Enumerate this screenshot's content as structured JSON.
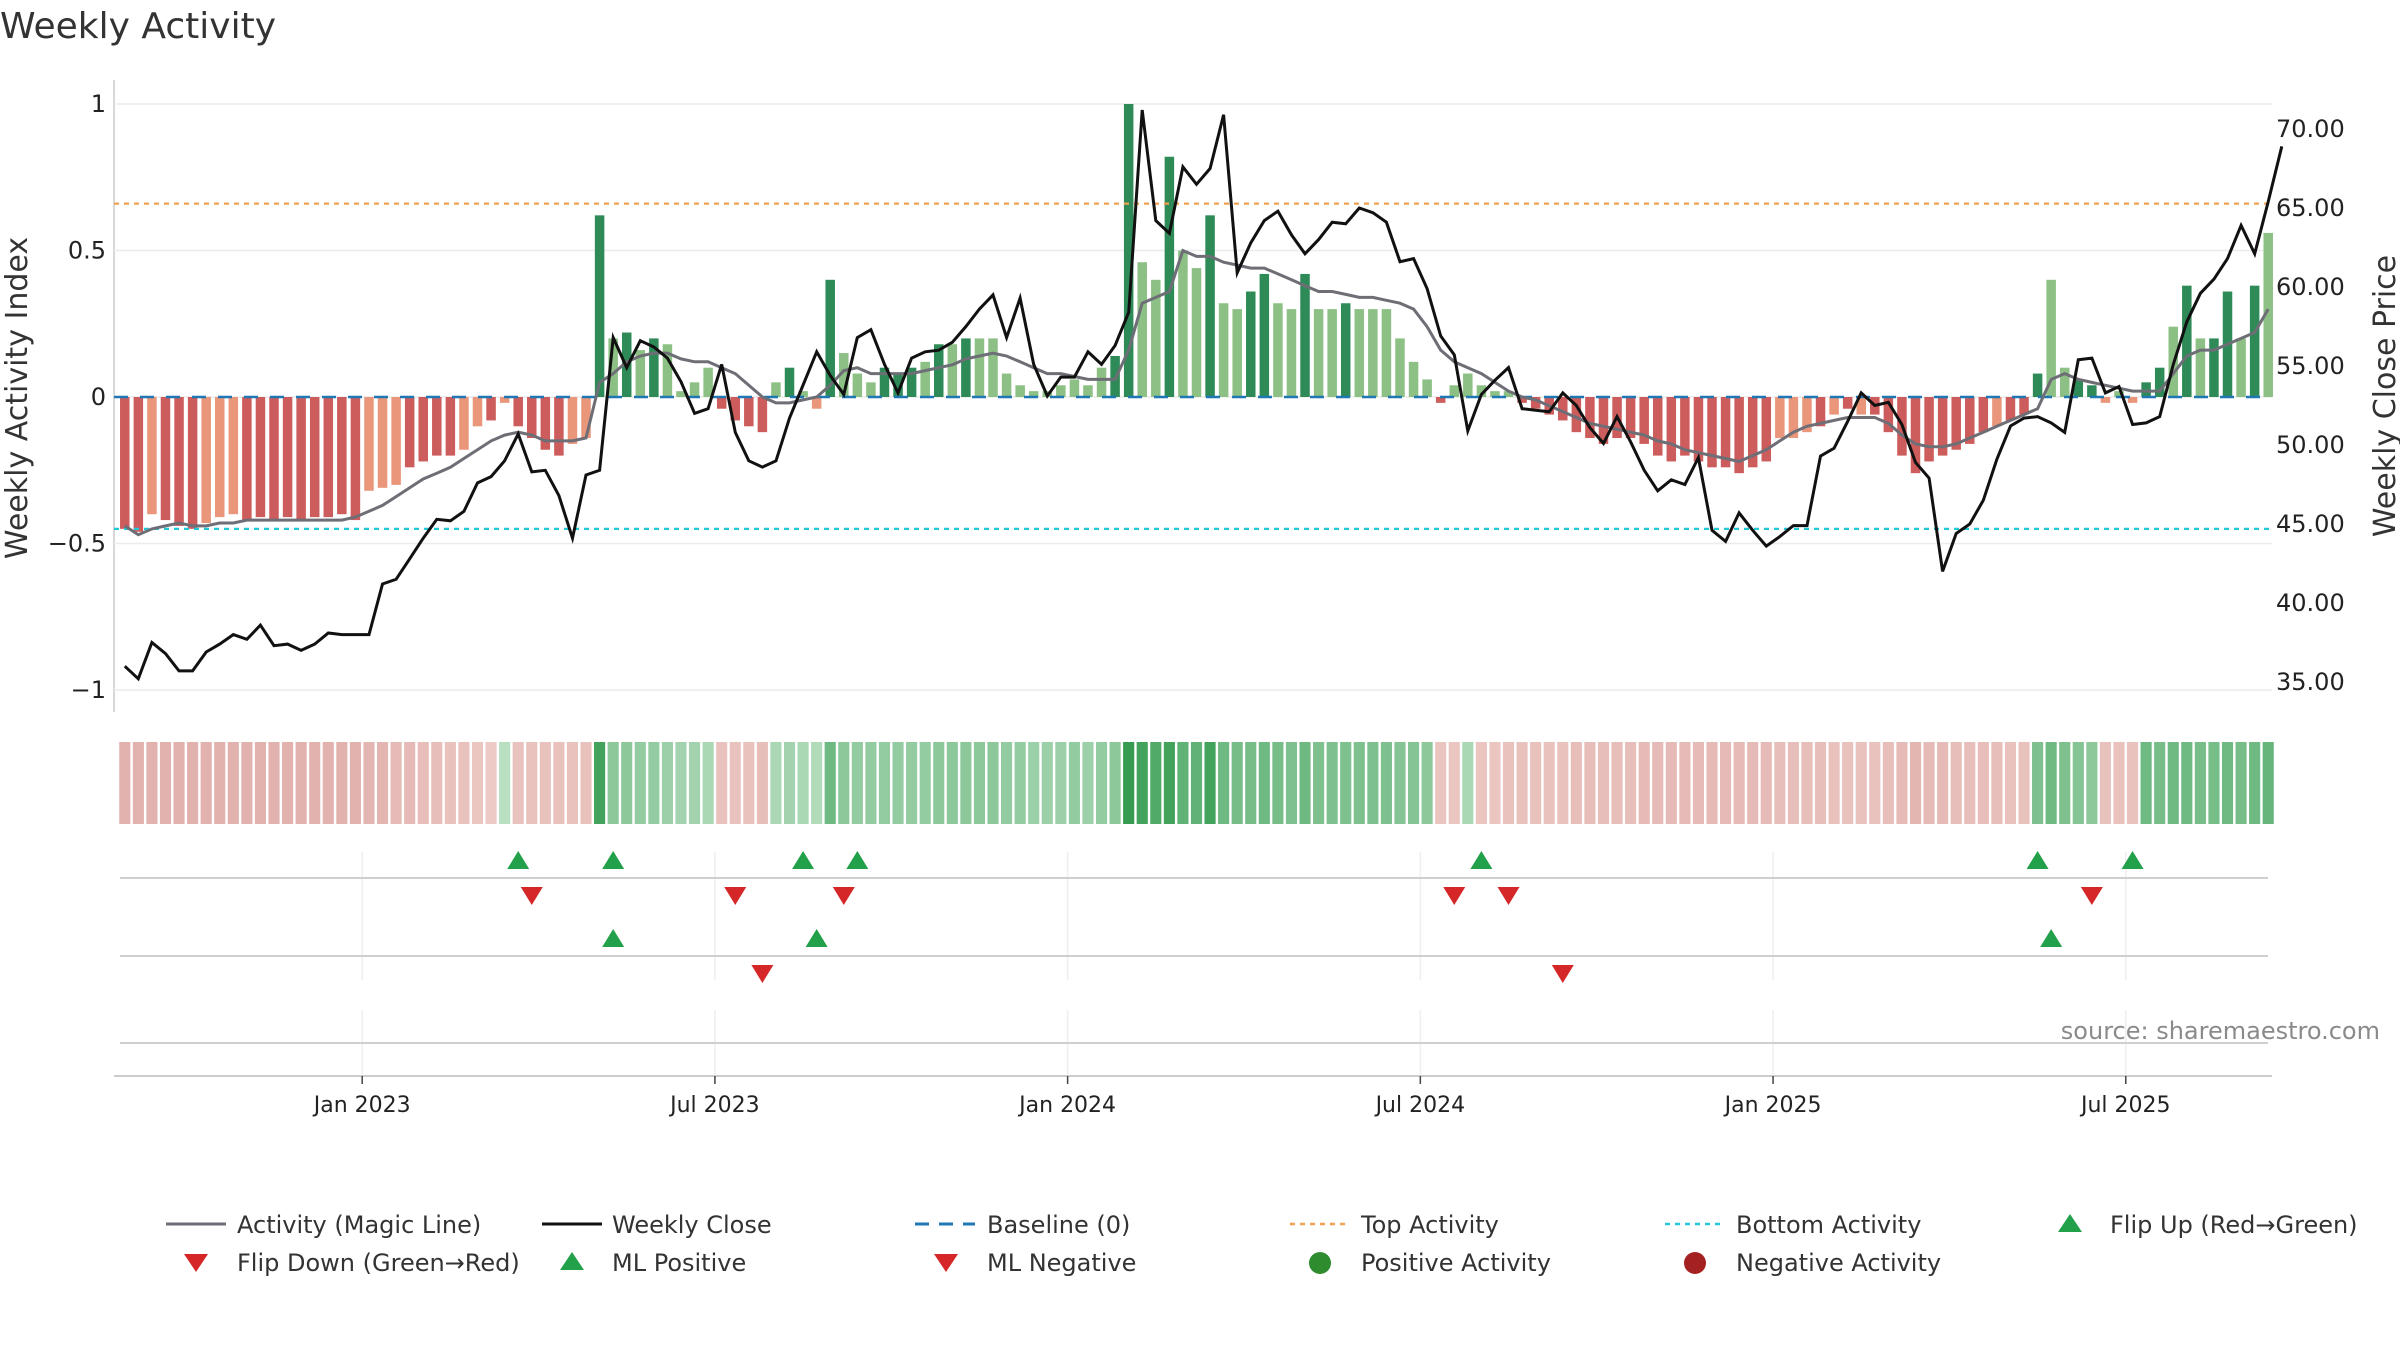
{
  "title": "Weekly Activity",
  "source": "source: sharemaestro.com",
  "colors": {
    "strong_pos": "#2e8b57",
    "weak_pos": "#8cc084",
    "strong_neg": "#cd5c5c",
    "weak_neg": "#e9967a",
    "magic_line": "#6e6e76",
    "close_line": "#111111",
    "baseline": "#1f77b4",
    "top_line": "#f0a050",
    "bottom_line": "#22c8d8",
    "marker_up": "#22a04a",
    "marker_down": "#d62728",
    "legend_pos_dot": "#2e8b2e",
    "legend_neg_dot": "#a52020"
  },
  "chart_data": {
    "type": "bar",
    "title": "Weekly Activity",
    "ylabel_left": "Weekly Activity Index",
    "ylabel_right": "Weekly Close Price",
    "ylim_left": [
      -1.1,
      1.1
    ],
    "ylim_right": [
      33,
      74
    ],
    "left_ticks": [
      "1",
      "0.5",
      "0",
      "−0.5",
      "−1"
    ],
    "left_tick_values": [
      1,
      0.5,
      0,
      -0.5,
      -1
    ],
    "right_ticks": [
      "70.00",
      "65.00",
      "60.00",
      "55.00",
      "50.00",
      "45.00",
      "40.00",
      "35.00"
    ],
    "right_tick_values": [
      70,
      65,
      60,
      55,
      50,
      45,
      40,
      35
    ],
    "date_ticks": [
      "Jan 2023",
      "Jul 2023",
      "Jan 2024",
      "Jul 2024",
      "Jan 2025",
      "Jul 2025"
    ],
    "date_tick_weeks": [
      17.5,
      43.5,
      69.5,
      95.5,
      121.5,
      147.5
    ],
    "top_activity": 0.66,
    "bottom_activity": -0.45,
    "baseline": 0,
    "activity": [
      -0.45,
      -0.46,
      -0.4,
      -0.42,
      -0.44,
      -0.45,
      -0.43,
      -0.41,
      -0.4,
      -0.42,
      -0.41,
      -0.42,
      -0.41,
      -0.42,
      -0.41,
      -0.41,
      -0.4,
      -0.42,
      -0.32,
      -0.31,
      -0.3,
      -0.24,
      -0.22,
      -0.2,
      -0.2,
      -0.18,
      -0.1,
      -0.08,
      -0.02,
      -0.1,
      -0.14,
      -0.18,
      -0.2,
      -0.16,
      -0.14,
      0.62,
      0.2,
      0.22,
      0.16,
      0.2,
      0.18,
      0.02,
      0.05,
      0.1,
      -0.04,
      -0.08,
      -0.1,
      -0.12,
      0.05,
      0.1,
      0.02,
      -0.04,
      0.4,
      0.15,
      0.08,
      0.05,
      0.1,
      0.08,
      0.1,
      0.12,
      0.18,
      0.18,
      0.2,
      0.2,
      0.2,
      0.08,
      0.04,
      0.02,
      0.02,
      0.04,
      0.06,
      0.04,
      0.1,
      0.14,
      1.0,
      0.46,
      0.4,
      0.82,
      0.5,
      0.44,
      0.62,
      0.32,
      0.3,
      0.36,
      0.42,
      0.32,
      0.3,
      0.42,
      0.3,
      0.3,
      0.32,
      0.3,
      0.3,
      0.3,
      0.2,
      0.12,
      0.06,
      -0.02,
      0.04,
      0.08,
      0.04,
      0.02,
      0.02,
      -0.02,
      -0.04,
      -0.06,
      -0.08,
      -0.12,
      -0.14,
      -0.16,
      -0.14,
      -0.14,
      -0.16,
      -0.2,
      -0.22,
      -0.2,
      -0.22,
      -0.24,
      -0.24,
      -0.26,
      -0.24,
      -0.22,
      -0.14,
      -0.14,
      -0.12,
      -0.1,
      -0.06,
      -0.04,
      -0.06,
      -0.06,
      -0.12,
      -0.2,
      -0.26,
      -0.22,
      -0.2,
      -0.18,
      -0.16,
      -0.12,
      -0.1,
      -0.08,
      -0.06,
      0.08,
      0.4,
      0.1,
      0.06,
      0.04,
      -0.02,
      0.02,
      -0.02,
      0.05,
      0.1,
      0.24,
      0.38,
      0.2,
      0.2,
      0.36,
      0.2,
      0.38,
      0.56
    ],
    "activity_strength": [
      1,
      1,
      0,
      1,
      1,
      1,
      0,
      0,
      0,
      1,
      1,
      1,
      1,
      1,
      1,
      1,
      1,
      1,
      0,
      0,
      0,
      1,
      1,
      1,
      1,
      0,
      0,
      1,
      0,
      1,
      1,
      1,
      1,
      0,
      0,
      1,
      0,
      1,
      0,
      1,
      0,
      0,
      0,
      0,
      1,
      1,
      1,
      1,
      0,
      1,
      0,
      0,
      1,
      0,
      0,
      0,
      1,
      1,
      1,
      0,
      1,
      0,
      1,
      0,
      0,
      0,
      0,
      0,
      0,
      0,
      0,
      0,
      0,
      1,
      1,
      0,
      0,
      1,
      0,
      0,
      1,
      0,
      0,
      1,
      1,
      0,
      0,
      1,
      0,
      0,
      1,
      0,
      0,
      0,
      0,
      0,
      0,
      1,
      0,
      0,
      0,
      0,
      0,
      1,
      1,
      1,
      1,
      1,
      1,
      1,
      1,
      1,
      1,
      1,
      1,
      1,
      1,
      1,
      1,
      1,
      1,
      1,
      0,
      0,
      0,
      1,
      0,
      1,
      0,
      1,
      1,
      1,
      1,
      1,
      1,
      1,
      1,
      1,
      0,
      1,
      1,
      1,
      0,
      0,
      1,
      1,
      0,
      0,
      0,
      1,
      1,
      0,
      1,
      0,
      1,
      1,
      0,
      1,
      0,
      1,
      1,
      1
    ],
    "magic_line": [
      -0.44,
      -0.47,
      -0.45,
      -0.44,
      -0.43,
      -0.44,
      -0.44,
      -0.43,
      -0.43,
      -0.42,
      -0.42,
      -0.42,
      -0.42,
      -0.42,
      -0.42,
      -0.42,
      -0.42,
      -0.41,
      -0.39,
      -0.37,
      -0.34,
      -0.31,
      -0.28,
      -0.26,
      -0.24,
      -0.21,
      -0.18,
      -0.15,
      -0.13,
      -0.12,
      -0.13,
      -0.15,
      -0.15,
      -0.15,
      -0.14,
      0.05,
      0.08,
      0.12,
      0.14,
      0.15,
      0.15,
      0.13,
      0.12,
      0.12,
      0.1,
      0.08,
      0.04,
      0.0,
      -0.02,
      -0.02,
      -0.01,
      0.0,
      0.04,
      0.09,
      0.1,
      0.08,
      0.08,
      0.08,
      0.08,
      0.09,
      0.1,
      0.11,
      0.13,
      0.14,
      0.15,
      0.14,
      0.12,
      0.1,
      0.08,
      0.08,
      0.07,
      0.06,
      0.06,
      0.06,
      0.16,
      0.32,
      0.34,
      0.36,
      0.5,
      0.48,
      0.48,
      0.46,
      0.45,
      0.44,
      0.44,
      0.42,
      0.4,
      0.38,
      0.36,
      0.36,
      0.35,
      0.34,
      0.34,
      0.33,
      0.32,
      0.3,
      0.24,
      0.16,
      0.12,
      0.1,
      0.08,
      0.05,
      0.02,
      0.0,
      -0.01,
      -0.03,
      -0.05,
      -0.07,
      -0.09,
      -0.1,
      -0.11,
      -0.12,
      -0.13,
      -0.15,
      -0.16,
      -0.18,
      -0.19,
      -0.2,
      -0.21,
      -0.22,
      -0.2,
      -0.18,
      -0.15,
      -0.12,
      -0.1,
      -0.09,
      -0.08,
      -0.07,
      -0.07,
      -0.07,
      -0.09,
      -0.13,
      -0.16,
      -0.17,
      -0.17,
      -0.16,
      -0.14,
      -0.12,
      -0.1,
      -0.08,
      -0.06,
      -0.04,
      0.06,
      0.08,
      0.06,
      0.05,
      0.04,
      0.03,
      0.02,
      0.02,
      0.02,
      0.08,
      0.14,
      0.16,
      0.16,
      0.18,
      0.2,
      0.22,
      0.3
    ],
    "weekly_close": [
      36,
      35.2,
      37.5,
      36.8,
      35.7,
      35.7,
      36.9,
      37.4,
      38,
      37.7,
      38.6,
      37.3,
      37.4,
      37,
      37.4,
      38.1,
      38,
      38,
      38,
      41.2,
      41.5,
      42.8,
      44.1,
      45.3,
      45.2,
      45.8,
      47.6,
      48,
      49,
      50.7,
      48.3,
      48.4,
      46.8,
      44.1,
      48.1,
      48.4,
      56.8,
      54.9,
      56.6,
      56.2,
      55.5,
      54,
      52,
      52.3,
      55.1,
      50.8,
      49,
      48.6,
      49,
      51.7,
      53.8,
      55.9,
      54.4,
      53.2,
      56.8,
      57.3,
      55.1,
      53.3,
      55.5,
      55.9,
      56,
      56.5,
      57.5,
      58.6,
      59.5,
      56.8,
      59.3,
      55.1,
      53.1,
      54.3,
      54.3,
      55.9,
      55.1,
      56.3,
      58.4,
      71.2,
      64.2,
      63.4,
      67.6,
      66.5,
      67.5,
      70.9,
      60.9,
      62.8,
      64.2,
      64.8,
      63.3,
      62.1,
      63,
      64.1,
      64,
      65,
      64.7,
      64.1,
      61.6,
      61.8,
      59.9,
      56.9,
      55.7,
      50.9,
      53.2,
      54.1,
      54.9,
      52.3,
      52.2,
      52.1,
      53.3,
      52.5,
      51.1,
      50.1,
      51.8,
      50.2,
      48.4,
      47.1,
      47.8,
      47.5,
      49.2,
      44.6,
      43.9,
      45.7,
      44.6,
      43.6,
      44.2,
      44.9,
      44.9,
      49.3,
      49.8,
      51.5,
      53.3,
      52.5,
      52.7,
      51.3,
      48.9,
      47.9,
      42,
      44.4,
      45,
      46.5,
      49.1,
      51.2,
      51.7,
      51.8,
      51.4,
      50.8,
      55.4,
      55.5,
      53.3,
      53.7,
      51.3,
      51.4,
      51.8,
      55.1,
      57.8,
      59.6,
      60.5,
      61.8,
      63.9,
      62.1,
      65.4,
      68.9
    ],
    "band": [
      -0.4,
      -0.4,
      -0.4,
      -0.4,
      -0.4,
      -0.4,
      -0.4,
      -0.4,
      -0.4,
      -0.4,
      -0.4,
      -0.4,
      -0.4,
      -0.4,
      -0.4,
      -0.4,
      -0.4,
      -0.4,
      -0.35,
      -0.35,
      -0.3,
      -0.3,
      -0.25,
      -0.25,
      -0.2,
      -0.2,
      -0.15,
      -0.1,
      0.1,
      -0.2,
      -0.2,
      -0.2,
      -0.2,
      -0.2,
      -0.2,
      0.9,
      0.4,
      0.4,
      0.35,
      0.35,
      0.3,
      0.25,
      0.25,
      0.2,
      -0.2,
      -0.2,
      -0.2,
      -0.25,
      0.2,
      0.25,
      0.2,
      0.15,
      0.6,
      0.4,
      0.35,
      0.35,
      0.35,
      0.35,
      0.35,
      0.35,
      0.4,
      0.4,
      0.4,
      0.4,
      0.4,
      0.35,
      0.35,
      0.3,
      0.3,
      0.3,
      0.35,
      0.3,
      0.35,
      0.4,
      1.0,
      0.9,
      0.8,
      0.9,
      0.7,
      0.7,
      0.9,
      0.6,
      0.55,
      0.55,
      0.6,
      0.55,
      0.5,
      0.6,
      0.5,
      0.5,
      0.5,
      0.5,
      0.5,
      0.5,
      0.45,
      0.45,
      0.4,
      -0.15,
      -0.15,
      0.2,
      -0.15,
      -0.15,
      -0.2,
      -0.2,
      -0.2,
      -0.2,
      -0.2,
      -0.25,
      -0.25,
      -0.25,
      -0.25,
      -0.25,
      -0.3,
      -0.3,
      -0.3,
      -0.3,
      -0.3,
      -0.3,
      -0.3,
      -0.3,
      -0.3,
      -0.3,
      -0.25,
      -0.25,
      -0.25,
      -0.25,
      -0.2,
      -0.2,
      -0.2,
      -0.2,
      -0.25,
      -0.3,
      -0.35,
      -0.3,
      -0.3,
      -0.25,
      -0.25,
      -0.25,
      -0.25,
      -0.2,
      -0.2,
      0.5,
      0.6,
      0.5,
      0.45,
      0.4,
      -0.2,
      -0.2,
      -0.2,
      0.6,
      0.55,
      0.6,
      0.6,
      0.55,
      0.55,
      0.6,
      0.55,
      0.6,
      0.65
    ],
    "flip_up_weeks": [
      29,
      36,
      50,
      54,
      100,
      141,
      148
    ],
    "flip_down_weeks": [
      30,
      45,
      53,
      98,
      102,
      145
    ],
    "ml_positive_weeks": [
      36,
      51,
      142
    ],
    "ml_negative_weeks": [
      47,
      106
    ],
    "legend": [
      "Activity (Magic Line)",
      "Weekly Close",
      "Baseline (0)",
      "Top Activity",
      "Bottom Activity",
      "Flip Up (Red→Green)",
      "Flip Down (Green→Red)",
      "ML Positive",
      "ML Negative",
      "Positive Activity",
      "Negative Activity"
    ]
  }
}
